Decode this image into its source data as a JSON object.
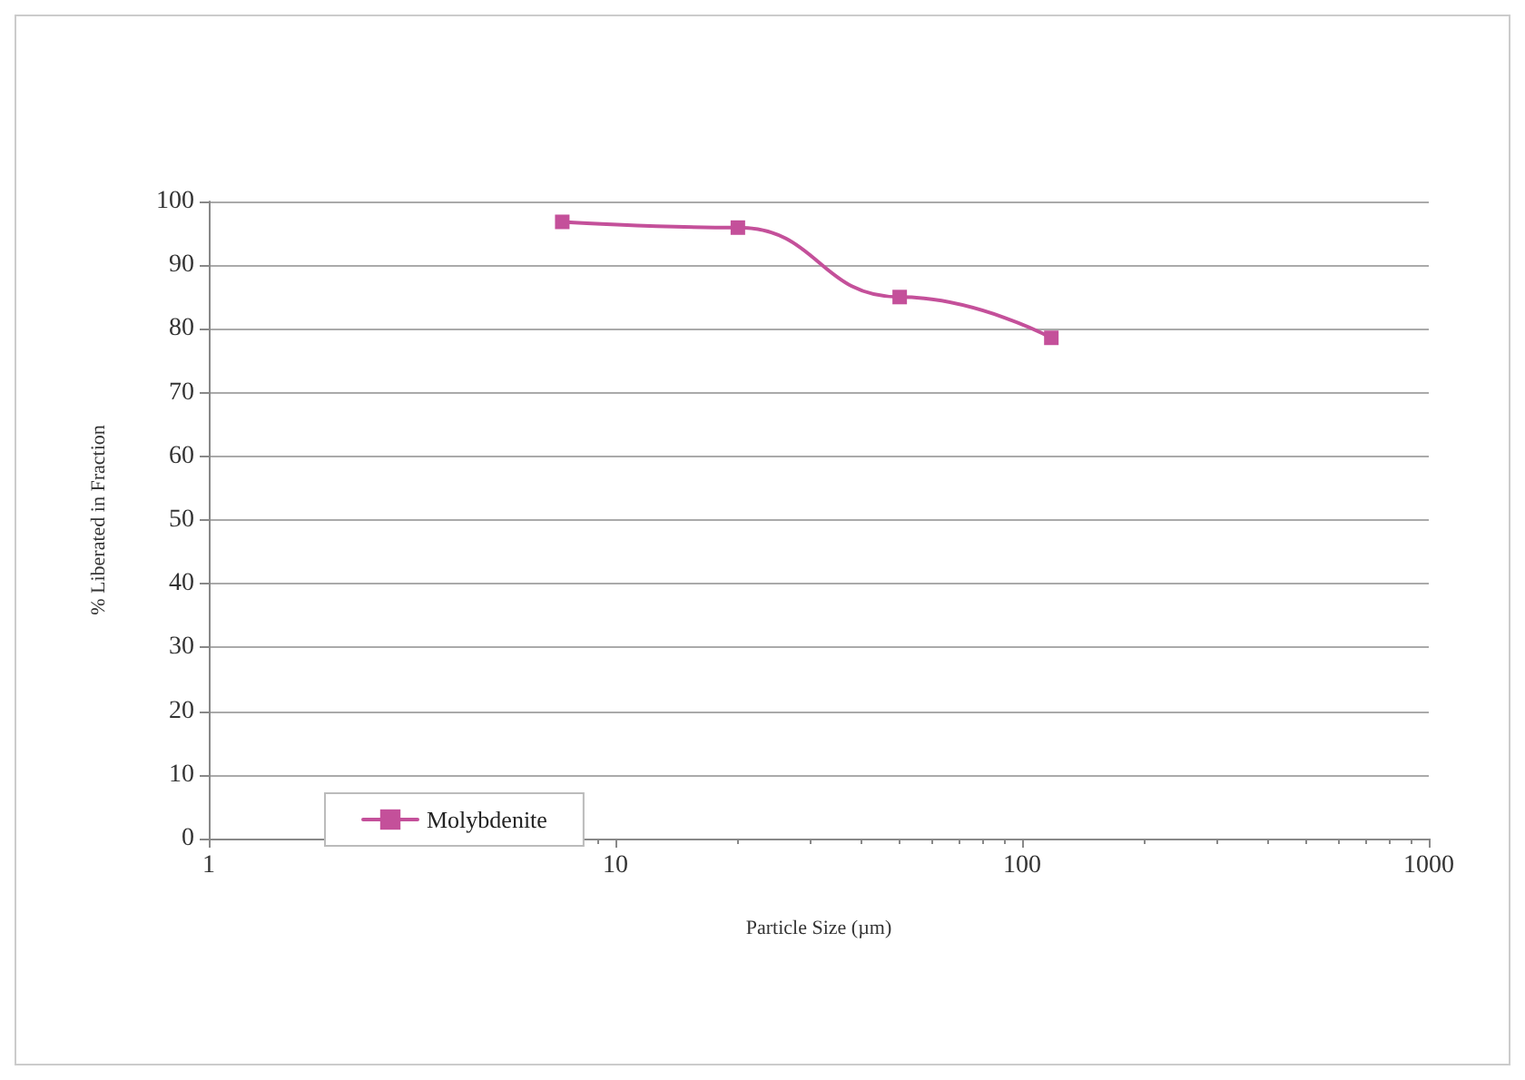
{
  "chart_data": {
    "type": "line",
    "xlabel": "Particle Size (µm)",
    "ylabel": "% Liberated in Fraction",
    "x": [
      7.4,
      20,
      50,
      118
    ],
    "series": [
      {
        "name": "Molybdenite",
        "color": "#c4509a",
        "values": [
          96.8,
          95.9,
          85,
          78.6
        ]
      }
    ],
    "log": "x",
    "xlim": [
      1,
      1000
    ],
    "xticks": [
      1,
      10,
      100,
      1000
    ],
    "ylim": [
      0,
      100
    ],
    "yticks": [
      0,
      10,
      20,
      30,
      40,
      50,
      60,
      70,
      80,
      90,
      100
    ],
    "grid": "y",
    "legend": "bottom left",
    "marker": "square",
    "line_style": "solid"
  }
}
